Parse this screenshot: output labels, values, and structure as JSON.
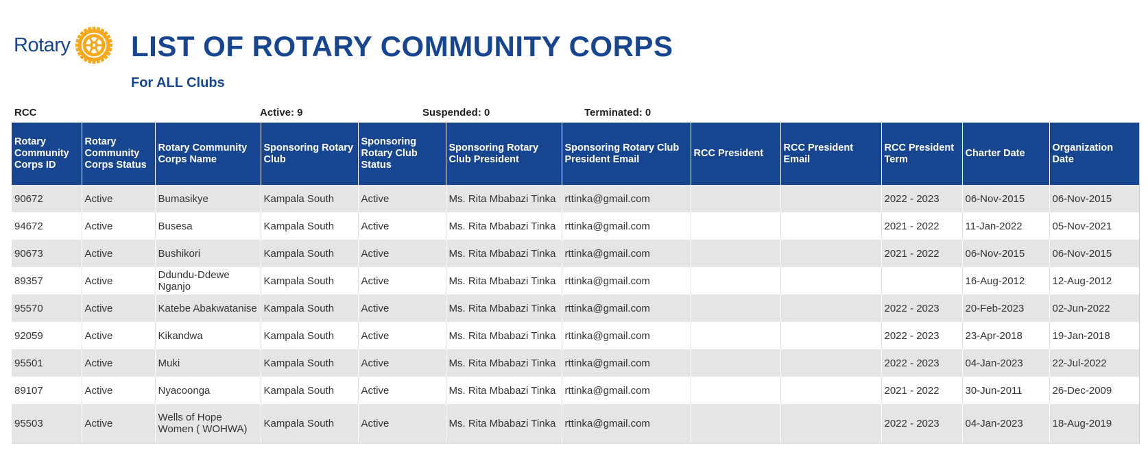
{
  "header": {
    "logo_text": "Rotary",
    "title": "LIST OF ROTARY COMMUNITY CORPS",
    "subtitle": "For ALL Clubs"
  },
  "colors": {
    "brand_blue": "#17458f",
    "brand_gold": "#f7a81b",
    "row_shade": "#e5e5e5"
  },
  "summary": {
    "rcc": "RCC",
    "active": "Active: 9",
    "suspended": "Suspended: 0",
    "terminated": "Terminated: 0"
  },
  "table": {
    "columns": [
      "Rotary Community Corps ID",
      "Rotary Community Corps Status",
      "Rotary Community Corps Name",
      "Sponsoring Rotary Club",
      "Sponsoring Rotary Club Status",
      "Sponsoring Rotary Club President",
      "Sponsoring Rotary Club President Email",
      "RCC President",
      "RCC President Email",
      "RCC President Term",
      "Charter Date",
      "Organization Date"
    ],
    "rows": [
      [
        "90672",
        "Active",
        "Bumasikye",
        "Kampala South",
        "Active",
        "Ms. Rita Mbabazi Tinka",
        "rttinka@gmail.com",
        "",
        "",
        "2022 - 2023",
        "06-Nov-2015",
        "06-Nov-2015"
      ],
      [
        "94672",
        "Active",
        "Busesa",
        "Kampala South",
        "Active",
        "Ms. Rita Mbabazi Tinka",
        "rttinka@gmail.com",
        "",
        "",
        "2021 - 2022",
        "11-Jan-2022",
        "05-Nov-2021"
      ],
      [
        "90673",
        "Active",
        "Bushikori",
        "Kampala South",
        "Active",
        "Ms. Rita Mbabazi Tinka",
        "rttinka@gmail.com",
        "",
        "",
        "2021 - 2022",
        "06-Nov-2015",
        "06-Nov-2015"
      ],
      [
        "89357",
        "Active",
        "Ddundu-Ddewe Nganjo",
        "Kampala South",
        "Active",
        "Ms. Rita Mbabazi Tinka",
        "rttinka@gmail.com",
        "",
        "",
        "",
        "16-Aug-2012",
        "12-Aug-2012"
      ],
      [
        "95570",
        "Active",
        "Katebe Abakwatanise",
        "Kampala South",
        "Active",
        "Ms. Rita Mbabazi Tinka",
        "rttinka@gmail.com",
        "",
        "",
        "2022 - 2023",
        "20-Feb-2023",
        "02-Jun-2022"
      ],
      [
        "92059",
        "Active",
        "Kikandwa",
        "Kampala South",
        "Active",
        "Ms. Rita Mbabazi Tinka",
        "rttinka@gmail.com",
        "",
        "",
        "2022 - 2023",
        "23-Apr-2018",
        "19-Jan-2018"
      ],
      [
        "95501",
        "Active",
        "Muki",
        "Kampala South",
        "Active",
        "Ms. Rita Mbabazi Tinka",
        "rttinka@gmail.com",
        "",
        "",
        "2022 - 2023",
        "04-Jan-2023",
        "22-Jul-2022"
      ],
      [
        "89107",
        "Active",
        "Nyacoonga",
        "Kampala South",
        "Active",
        "Ms. Rita Mbabazi Tinka",
        "rttinka@gmail.com",
        "",
        "",
        "2021 - 2022",
        "30-Jun-2011",
        "26-Dec-2009"
      ],
      [
        "95503",
        "Active",
        "Wells of Hope Women ( WOHWA)",
        "Kampala South",
        "Active",
        "Ms. Rita Mbabazi Tinka",
        "rttinka@gmail.com",
        "",
        "",
        "2022 - 2023",
        "04-Jan-2023",
        "18-Aug-2019"
      ]
    ]
  }
}
